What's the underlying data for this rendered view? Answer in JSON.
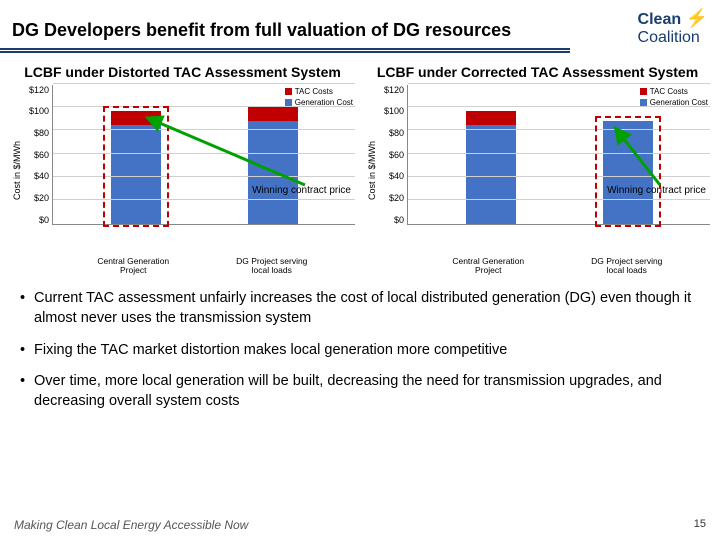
{
  "header": {
    "title": "DG Developers benefit from full valuation of DG resources",
    "logo_clean": "Clean",
    "logo_coalition": "Coalition"
  },
  "charts": {
    "ylabel": "Cost in $/MWh",
    "ymax": 120,
    "ytick_step": 20,
    "yticks": [
      "$120",
      "$100",
      "$80",
      "$60",
      "$40",
      "$20",
      "$0"
    ],
    "legend": [
      {
        "label": "TAC Costs",
        "color": "#c00000"
      },
      {
        "label": "Generation Cost",
        "color": "#4472c4"
      }
    ],
    "categories": [
      "Central Generation Project",
      "DG Project serving local loads"
    ],
    "annotation": "Winning contract price",
    "left": {
      "title": "LCBF under Distorted TAC Assessment System",
      "bars": [
        {
          "gen": 85,
          "tac": 12,
          "gen_color": "#4472c4",
          "tac_color": "#c00000"
        },
        {
          "gen": 88,
          "tac": 12,
          "gen_color": "#4472c4",
          "tac_color": "#c00000"
        }
      ],
      "winner_index": 0
    },
    "right": {
      "title": "LCBF under Corrected TAC Assessment System",
      "bars": [
        {
          "gen": 85,
          "tac": 12,
          "gen_color": "#4472c4",
          "tac_color": "#c00000"
        },
        {
          "gen": 88,
          "tac": 0,
          "gen_color": "#4472c4",
          "tac_color": "#c00000"
        }
      ],
      "winner_index": 1
    }
  },
  "bullets": [
    "Current TAC assessment unfairly increases the cost of local distributed generation (DG) even though it almost never uses the transmission system",
    "Fixing the TAC market distortion makes local generation more competitive",
    "Over time, more local generation will be built, decreasing the need for transmission upgrades, and decreasing overall system costs"
  ],
  "footer": {
    "tagline": "Making Clean Local Energy Accessible Now",
    "page": "15"
  }
}
